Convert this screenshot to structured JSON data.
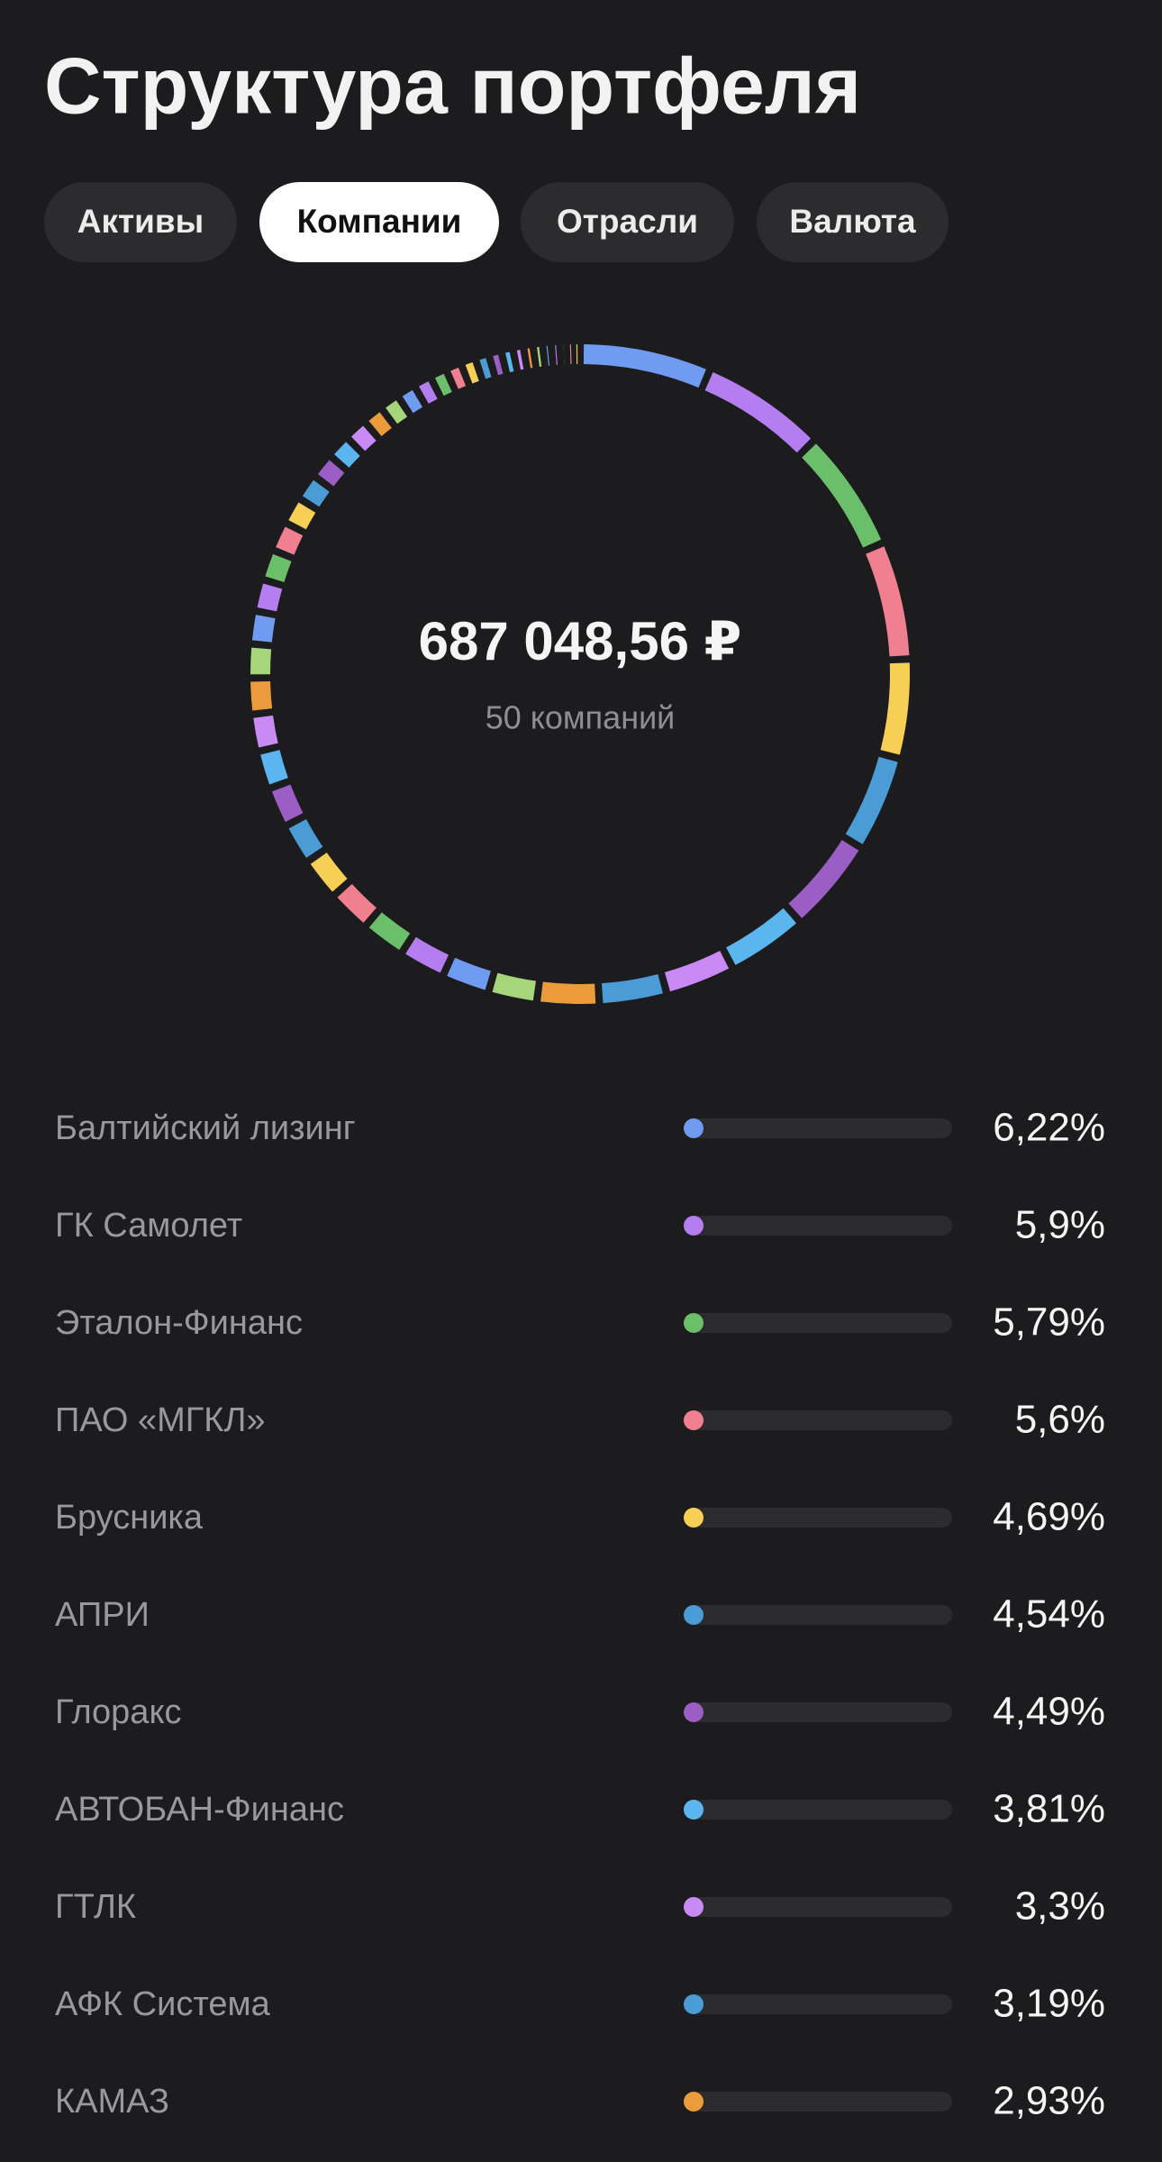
{
  "header": {
    "title": "Структура портфеля"
  },
  "tabs": [
    "Активы",
    "Компании",
    "Отрасли",
    "Валюта"
  ],
  "selected_tab": 1,
  "chart_data": {
    "type": "donut",
    "total": {
      "value": 687048.56,
      "label": "687 048,56 ₽"
    },
    "subtitle": "50 компаний",
    "items": [
      {
        "name": "Балтийский лизинг",
        "value": 6.22,
        "value_label": "6,22%",
        "color": "#6f9cf0"
      },
      {
        "name": "ГК Самолет",
        "value": 5.9,
        "value_label": "5,9%",
        "color": "#b57ef0"
      },
      {
        "name": "Эталон-Финанс",
        "value": 5.79,
        "value_label": "5,79%",
        "color": "#6cbf6a"
      },
      {
        "name": "ПАО «МГКЛ»",
        "value": 5.6,
        "value_label": "5,6%",
        "color": "#f07f8f"
      },
      {
        "name": "Брусника",
        "value": 4.69,
        "value_label": "4,69%",
        "color": "#f7cf55"
      },
      {
        "name": "АПРИ",
        "value": 4.54,
        "value_label": "4,54%",
        "color": "#4a9bd6"
      },
      {
        "name": "Глоракс",
        "value": 4.49,
        "value_label": "4,49%",
        "color": "#9a5ec4"
      },
      {
        "name": "АВТОБАН-Финанс",
        "value": 3.81,
        "value_label": "3,81%",
        "color": "#5bb5ef"
      },
      {
        "name": "ГТЛК",
        "value": 3.3,
        "value_label": "3,3%",
        "color": "#c98af5"
      },
      {
        "name": "АФК Система",
        "value": 3.19,
        "value_label": "3,19%",
        "color": "#4a9bd6"
      },
      {
        "name": "КАМАЗ",
        "value": 2.93,
        "value_label": "2,93%",
        "color": "#eb9a3c"
      }
    ],
    "other_segments": {
      "values": [
        2.3,
        2.25,
        2.2,
        2.1,
        2.05,
        2.0,
        1.95,
        1.9,
        1.8,
        1.75,
        1.7,
        1.6,
        1.55,
        1.5,
        1.45,
        1.4,
        1.3,
        1.25,
        1.2,
        1.15,
        1.1,
        1.0,
        0.95,
        0.9,
        0.85,
        0.8,
        0.75,
        0.7,
        0.65,
        0.6,
        0.55,
        0.5,
        0.45,
        0.45,
        0.4,
        0.4,
        0.35,
        0.3,
        0.3
      ],
      "palette": [
        "#a6d57a",
        "#6f9cf0",
        "#b57ef0",
        "#6cbf6a",
        "#f07f8f",
        "#f7cf55",
        "#4a9bd6",
        "#9a5ec4",
        "#5bb5ef",
        "#c98af5",
        "#eb9a3c"
      ]
    },
    "bar_max": 100
  }
}
